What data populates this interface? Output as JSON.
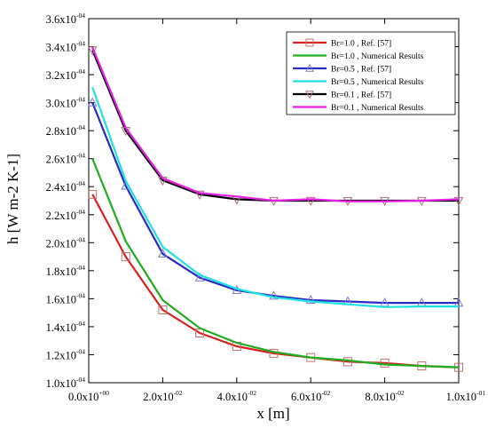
{
  "chart_data": {
    "type": "line",
    "xlabel": "x [m]",
    "ylabel": "h [W m-2 K-1]",
    "xlim": [
      0,
      0.1
    ],
    "ylim": [
      0.0001,
      0.00036
    ],
    "grid": false,
    "legend_position": "top-right",
    "x_ticks": [
      {
        "value": 0,
        "label": "0.0x10",
        "exp": "+00"
      },
      {
        "value": 0.02,
        "label": "2.0x10",
        "exp": "-02"
      },
      {
        "value": 0.04,
        "label": "4.0x10",
        "exp": "-02"
      },
      {
        "value": 0.06,
        "label": "6.0x10",
        "exp": "-02"
      },
      {
        "value": 0.08,
        "label": "8.0x10",
        "exp": "-02"
      },
      {
        "value": 0.1,
        "label": "1.0x10",
        "exp": "-01"
      }
    ],
    "y_ticks": [
      {
        "value": 0.0001,
        "label": "1.0x10",
        "exp": "-04"
      },
      {
        "value": 0.00012,
        "label": "1.2x10",
        "exp": "-04"
      },
      {
        "value": 0.00014,
        "label": "1.4x10",
        "exp": "-04"
      },
      {
        "value": 0.00016,
        "label": "1.6x10",
        "exp": "-04"
      },
      {
        "value": 0.00018,
        "label": "1.8x10",
        "exp": "-04"
      },
      {
        "value": 0.0002,
        "label": "2.0x10",
        "exp": "-04"
      },
      {
        "value": 0.00022,
        "label": "2.2x10",
        "exp": "-04"
      },
      {
        "value": 0.00024,
        "label": "2.4x10",
        "exp": "-04"
      },
      {
        "value": 0.00026,
        "label": "2.6x10",
        "exp": "-04"
      },
      {
        "value": 0.00028,
        "label": "2.8x10",
        "exp": "-04"
      },
      {
        "value": 0.0003,
        "label": "3.0x10",
        "exp": "-04"
      },
      {
        "value": 0.00032,
        "label": "3.2x10",
        "exp": "-04"
      },
      {
        "value": 0.00034,
        "label": "3.4x10",
        "exp": "-04"
      },
      {
        "value": 0.00036,
        "label": "3.6x10",
        "exp": "-04"
      }
    ],
    "series": [
      {
        "name": "Br=1.0 , Ref. [57]",
        "color": "#d62020",
        "marker": "square",
        "marker_color": "#c77070",
        "x": [
          0.001,
          0.01,
          0.02,
          0.03,
          0.04,
          0.05,
          0.06,
          0.07,
          0.08,
          0.09,
          0.1
        ],
        "y": [
          0.0002345,
          0.00019,
          0.000152,
          0.0001355,
          0.000126,
          0.000121,
          0.000118,
          0.000115,
          0.000114,
          0.000112,
          0.000111
        ]
      },
      {
        "name": "Br=1.0 , Numerical Results",
        "color": "#1fad1f",
        "marker": "none",
        "x": [
          0.001,
          0.01,
          0.02,
          0.03,
          0.04,
          0.05,
          0.06,
          0.07,
          0.08,
          0.09,
          0.1
        ],
        "y": [
          0.00026,
          0.000201,
          0.000159,
          0.000139,
          0.0001285,
          0.000122,
          0.000118,
          0.000116,
          0.000113,
          0.000112,
          0.000111
        ]
      },
      {
        "name": "Br=0.5 , Ref. [57]",
        "color": "#2a2ac8",
        "marker": "triangle-up",
        "marker_color": "#7b7bd0",
        "x": [
          0.001,
          0.01,
          0.02,
          0.03,
          0.04,
          0.05,
          0.06,
          0.07,
          0.08,
          0.09,
          0.1
        ],
        "y": [
          0.0003,
          0.0002405,
          0.000192,
          0.000175,
          0.000166,
          0.000162,
          0.000159,
          0.000158,
          0.000157,
          0.000157,
          0.000157
        ]
      },
      {
        "name": "Br=0.5 , Numerical Results",
        "color": "#1fe0e0",
        "marker": "none",
        "x": [
          0.001,
          0.01,
          0.02,
          0.03,
          0.04,
          0.05,
          0.06,
          0.07,
          0.08,
          0.09,
          0.1
        ],
        "y": [
          0.000311,
          0.000244,
          0.000197,
          0.000177,
          0.000167,
          0.000161,
          0.000158,
          0.000156,
          0.000154,
          0.0001545,
          0.0001545
        ]
      },
      {
        "name": "Br=0.1 , Ref. [57]",
        "color": "#000000",
        "marker": "triangle-down",
        "marker_color": "#b06a7a",
        "x": [
          0.001,
          0.01,
          0.02,
          0.03,
          0.04,
          0.05,
          0.06,
          0.07,
          0.08,
          0.09,
          0.1
        ],
        "y": [
          0.0003375,
          0.00028,
          0.0002445,
          0.0002345,
          0.000231,
          0.00023,
          0.00023,
          0.00023,
          0.00023,
          0.00023,
          0.00023
        ]
      },
      {
        "name": "Br=0.1 , Numerical Results",
        "color": "#e61ee6",
        "marker": "none",
        "x": [
          0.001,
          0.01,
          0.02,
          0.03,
          0.04,
          0.05,
          0.06,
          0.07,
          0.08,
          0.09,
          0.1
        ],
        "y": [
          0.0003395,
          0.000282,
          0.000246,
          0.0002355,
          0.000233,
          0.00023,
          0.000231,
          0.0002295,
          0.0002295,
          0.00023,
          0.000231
        ]
      }
    ]
  }
}
